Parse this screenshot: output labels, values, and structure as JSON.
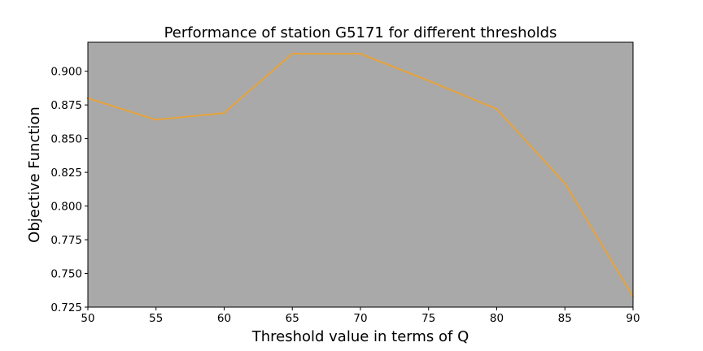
{
  "chart_data": {
    "type": "line",
    "title": "Performance of station G5171 for different thresholds",
    "xlabel": "Threshold value in terms of Q",
    "ylabel": "Objective Function",
    "xlim": [
      50,
      90
    ],
    "ylim": [
      0.725,
      0.9215
    ],
    "xticks": [
      "50",
      "55",
      "60",
      "65",
      "70",
      "75",
      "80",
      "85",
      "90"
    ],
    "yticks": [
      "0.725",
      "0.750",
      "0.775",
      "0.800",
      "0.825",
      "0.850",
      "0.875",
      "0.900"
    ],
    "grid": false,
    "series": [
      {
        "x": [
          50,
          55,
          60,
          65,
          70,
          75,
          80,
          85,
          90
        ],
        "y": [
          0.88,
          0.864,
          0.869,
          0.913,
          0.913,
          0.893,
          0.872,
          0.817,
          0.733
        ]
      }
    ],
    "colors": {
      "plot_background": "#a9a9a9",
      "line": "#e8a33a",
      "axes": "#000000"
    }
  }
}
